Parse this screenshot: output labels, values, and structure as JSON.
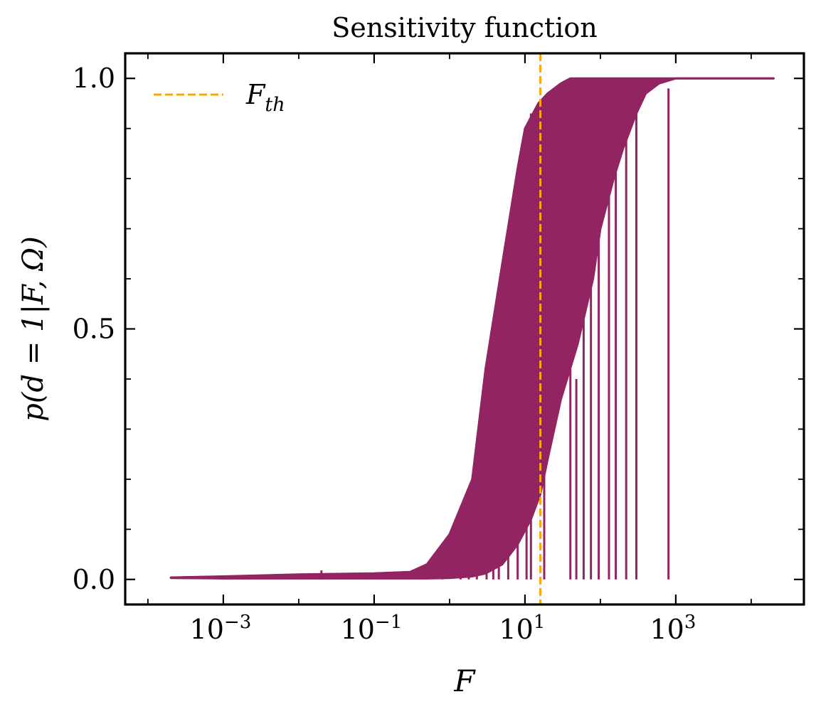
{
  "chart_data": {
    "type": "line",
    "title": "Sensitivity function",
    "xlabel": "F",
    "ylabel": "p(d = 1|F, Ω)",
    "x_scale": "log",
    "xlim": [
      5e-05,
      50000
    ],
    "ylim": [
      -0.05,
      1.05
    ],
    "x_ticks": [
      {
        "value": 0.001,
        "base": "10",
        "exp": "−3"
      },
      {
        "value": 0.1,
        "base": "10",
        "exp": "−1"
      },
      {
        "value": 10,
        "base": "10",
        "exp": "1"
      },
      {
        "value": 1000,
        "base": "10",
        "exp": "3"
      }
    ],
    "y_ticks": [
      {
        "value": 0.0,
        "label": "0.0"
      },
      {
        "value": 0.5,
        "label": "0.5"
      },
      {
        "value": 1.0,
        "label": "1.0"
      }
    ],
    "y_minor_ticks": [
      0.1,
      0.2,
      0.3,
      0.4,
      0.6,
      0.7,
      0.8,
      0.9
    ],
    "grid": false,
    "legend": {
      "position": "top-left",
      "entries": [
        {
          "label_base": "F",
          "label_sub": "th",
          "style": "dashed",
          "color": "#FFA500"
        }
      ]
    },
    "series": [
      {
        "color": "#922462",
        "style": "solid",
        "lower": {
          "x": [
            0.0002,
            0.001,
            0.01,
            0.1,
            0.5,
            1.0,
            2.0,
            3.0,
            5.0,
            8.0,
            12.0,
            16.0,
            20.0,
            30.0,
            50.0,
            80.0,
            100.0,
            150.0,
            200.0,
            300.0,
            400.0,
            600.0,
            1000.0,
            20000.0
          ],
          "y": [
            0.003,
            0.002,
            0.002,
            0.002,
            0.002,
            0.003,
            0.006,
            0.012,
            0.03,
            0.07,
            0.12,
            0.17,
            0.24,
            0.36,
            0.47,
            0.6,
            0.7,
            0.8,
            0.86,
            0.93,
            0.97,
            0.99,
            1.0,
            1.0
          ]
        },
        "upper": {
          "x": [
            0.0002,
            0.001,
            0.01,
            0.1,
            0.3,
            0.5,
            1.0,
            2.0,
            3.0,
            5.0,
            8.0,
            10.0,
            15.0,
            20.0,
            30.0,
            40.0,
            60.0,
            100.0,
            200.0,
            400.0,
            1000.0,
            20000.0
          ],
          "y": [
            0.004,
            0.006,
            0.01,
            0.012,
            0.015,
            0.03,
            0.09,
            0.2,
            0.42,
            0.63,
            0.82,
            0.9,
            0.95,
            0.97,
            0.99,
            1.0,
            1.0,
            1.0,
            1.0,
            1.0,
            1.0,
            1.0
          ]
        },
        "spikes": [
          {
            "x": 0.001,
            "y": 0.008
          },
          {
            "x": 0.02,
            "y": 0.018
          },
          {
            "x": 0.8,
            "y": 0.03
          },
          {
            "x": 1.4,
            "y": 0.06
          },
          {
            "x": 1.8,
            "y": 0.13
          },
          {
            "x": 2.3,
            "y": 0.18
          },
          {
            "x": 3.1,
            "y": 0.23
          },
          {
            "x": 3.8,
            "y": 0.33
          },
          {
            "x": 4.5,
            "y": 0.55
          },
          {
            "x": 6.0,
            "y": 0.62
          },
          {
            "x": 8.0,
            "y": 0.71
          },
          {
            "x": 10.5,
            "y": 0.78
          },
          {
            "x": 12.0,
            "y": 0.93
          },
          {
            "x": 18.0,
            "y": 0.96
          },
          {
            "x": 40.0,
            "y": 0.42
          },
          {
            "x": 48.0,
            "y": 0.4
          },
          {
            "x": 60.0,
            "y": 0.56
          },
          {
            "x": 75.0,
            "y": 0.7
          },
          {
            "x": 95.0,
            "y": 0.75
          },
          {
            "x": 130.0,
            "y": 0.82
          },
          {
            "x": 160.0,
            "y": 0.86
          },
          {
            "x": 220.0,
            "y": 0.9
          },
          {
            "x": 300.0,
            "y": 0.93
          },
          {
            "x": 800.0,
            "y": 0.98
          }
        ]
      }
    ],
    "vline": {
      "x": 16.0,
      "color": "#FFA500",
      "style": "dashed"
    }
  }
}
